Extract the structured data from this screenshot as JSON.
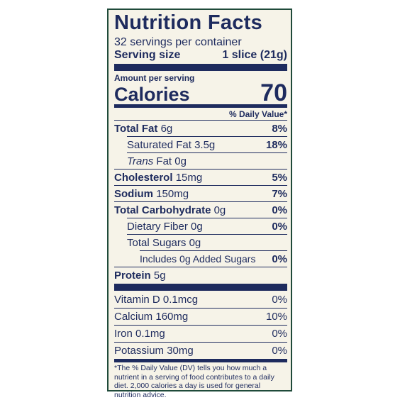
{
  "title": "Nutrition Facts",
  "servings": "32 servings per container",
  "serving_size": {
    "label": "Serving size",
    "value": "1 slice (21g)"
  },
  "amount_per_serving": "Amount per serving",
  "calories": {
    "label": "Calories",
    "value": "70"
  },
  "dv_header": "% Daily Value*",
  "nutrients": [
    {
      "name": "Total Fat",
      "amount": "6g",
      "dv": "8%"
    },
    {
      "name": "Saturated Fat",
      "amount": "3.5g",
      "dv": "18%"
    },
    {
      "prefix": "Trans",
      "name": "Fat",
      "amount": "0g"
    },
    {
      "name": "Cholesterol",
      "amount": "15mg",
      "dv": "5%"
    },
    {
      "name": "Sodium",
      "amount": "150mg",
      "dv": "7%"
    },
    {
      "name": "Total Carbohydrate",
      "amount": "0g",
      "dv": "0%"
    },
    {
      "name": "Dietary Fiber",
      "amount": "0g",
      "dv": "0%"
    },
    {
      "name": "Total Sugars",
      "amount": "0g"
    },
    {
      "name": "Includes 0g Added Sugars",
      "dv": "0%"
    },
    {
      "name": "Protein",
      "amount": "5g"
    }
  ],
  "vitamins": [
    {
      "name": "Vitamin D",
      "amount": "0.1mcg",
      "dv": "0%"
    },
    {
      "name": "Calcium",
      "amount": "160mg",
      "dv": "10%"
    },
    {
      "name": "Iron",
      "amount": "0.1mg",
      "dv": "0%"
    },
    {
      "name": "Potassium",
      "amount": "30mg",
      "dv": "0%"
    }
  ],
  "footnote": "*The % Daily Value (DV) tells you how much a nutrient in a serving of food contributes to a daily diet. 2,000 calories a day is used for general nutrition advice."
}
